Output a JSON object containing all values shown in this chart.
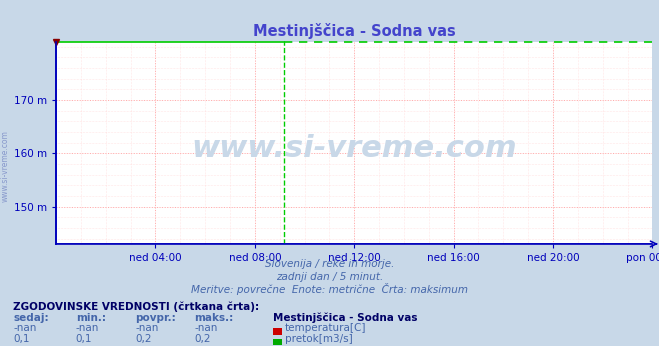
{
  "title": "Mestinjščica - Sodna vas",
  "bg_color": "#c8d8e8",
  "plot_bg_color": "#ffffff",
  "title_color": "#4444cc",
  "axis_color": "#0000bb",
  "text_color": "#4466aa",
  "xlabel_ticks": [
    "ned 04:00",
    "ned 08:00",
    "ned 12:00",
    "ned 16:00",
    "ned 20:00",
    "pon 00:00"
  ],
  "xtick_positions": [
    48,
    96,
    144,
    192,
    240,
    288
  ],
  "ytick_positions": [
    150,
    160,
    170
  ],
  "ytick_labels": [
    "150 m",
    "160 m",
    "170 m"
  ],
  "ylim": [
    143,
    181
  ],
  "xlim": [
    0,
    288
  ],
  "grid_major_color": "#ffaaaa",
  "grid_minor_color": "#ffd0d0",
  "green_line_color": "#00cc00",
  "green_solid_end": 110,
  "green_dashed_x": 110,
  "red_marker_color": "#880000",
  "subtitle1": "Slovenija / reke in morje.",
  "subtitle2": "zadnji dan / 5 minut.",
  "subtitle3": "Meritve: povrečne  Enote: metrične  Črta: maksimum",
  "hist_title": "ZGODOVINSKE VREDNOSTI (črtkana črta):",
  "hist_cols": [
    "sedaj:",
    "min.:",
    "povpr.:",
    "maks.:"
  ],
  "hist_row1": [
    "-nan",
    "-nan",
    "-nan",
    "-nan"
  ],
  "hist_row2": [
    "0,1",
    "0,1",
    "0,2",
    "0,2"
  ],
  "legend_station": "Mestinjščica - Sodna vas",
  "legend_items": [
    "temperatura[C]",
    "pretok[m3/s]"
  ],
  "legend_colors": [
    "#cc0000",
    "#00aa00"
  ],
  "watermark": "www.si-vreme.com",
  "watermark_color": "#c8d8e8",
  "sidebar_text": "www.si-vreme.com",
  "sidebar_color": "#8899cc"
}
